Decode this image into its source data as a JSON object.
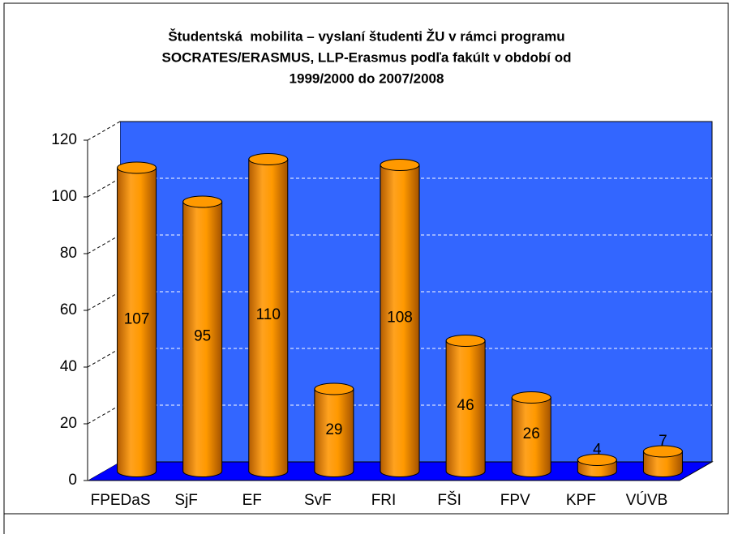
{
  "chart_data": {
    "type": "bar",
    "title": [
      "Študentská  mobilita – vyslaní študenti ŽU v rámci programu",
      "SOCRATES/ERASMUS, LLP-Erasmus podľa fakúlt v období od",
      "1999/2000 do 2007/2008"
    ],
    "categories": [
      "FPEDaS",
      "SjF",
      "EF",
      "SvF",
      "FRI",
      "FŠI",
      "FPV",
      "KPF",
      "VÚVB"
    ],
    "values": [
      107,
      95,
      110,
      29,
      108,
      46,
      26,
      4,
      7
    ],
    "color": "#ff9900",
    "ylim": [
      0,
      120
    ],
    "yticks": [
      0,
      20,
      40,
      60,
      80,
      100,
      120
    ],
    "grid": true
  }
}
